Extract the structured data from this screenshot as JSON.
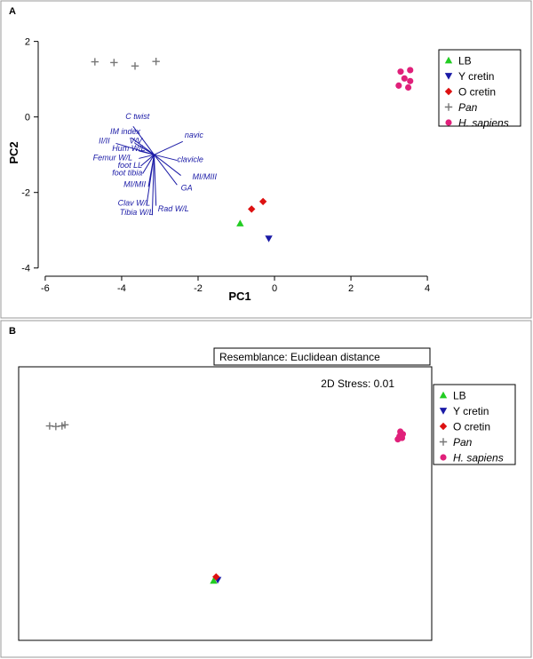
{
  "colors": {
    "LB": "#22cc22",
    "Y cretin": "#1a1aa6",
    "O cretin": "#dd1111",
    "Pan": "#777777",
    "H. sapiens": "#e0207a",
    "vector": "#1a1aa6"
  },
  "legend": [
    {
      "name": "LB",
      "marker": "triangle-up",
      "italic": false
    },
    {
      "name": "Y cretin",
      "marker": "triangle-down",
      "italic": false
    },
    {
      "name": "O cretin",
      "marker": "diamond",
      "italic": false
    },
    {
      "name": "Pan",
      "marker": "plus",
      "italic": true
    },
    {
      "name": "H. sapiens",
      "marker": "circle",
      "italic": true
    }
  ],
  "chart_data": [
    {
      "panel": "A",
      "type": "scatter",
      "xlabel": "PC1",
      "ylabel": "PC2",
      "xlim": [
        -6.3,
        4.3
      ],
      "ylim": [
        -4.1,
        2.25
      ],
      "xticks": [
        -6,
        -4,
        -2,
        0,
        2,
        4
      ],
      "yticks": [
        -4,
        -2,
        0,
        2
      ],
      "grid": false,
      "legend_position": "top-right",
      "series": [
        {
          "name": "LB",
          "x": [
            -0.9
          ],
          "y": [
            -2.82
          ]
        },
        {
          "name": "Y cretin",
          "x": [
            -0.15
          ],
          "y": [
            -3.22
          ]
        },
        {
          "name": "O cretin",
          "x": [
            -0.6,
            -0.3
          ],
          "y": [
            -2.44,
            -2.24
          ]
        },
        {
          "name": "Pan",
          "x": [
            -4.7,
            -4.2,
            -3.65,
            -3.1
          ],
          "y": [
            1.46,
            1.44,
            1.35,
            1.47
          ]
        },
        {
          "name": "H. sapiens",
          "x": [
            3.3,
            3.55,
            3.4,
            3.55,
            3.25,
            3.5
          ],
          "y": [
            1.2,
            1.24,
            1.02,
            0.95,
            0.83,
            0.78
          ]
        }
      ],
      "vector_origin": [
        -3.15,
        -1.0
      ],
      "vectors": [
        {
          "label": "C twist",
          "end": [
            -3.7,
            -0.25
          ],
          "label_at": [
            -3.9,
            -0.05
          ]
        },
        {
          "label": "IM index",
          "end": [
            -3.75,
            -0.55
          ],
          "label_at": [
            -4.3,
            -0.45
          ]
        },
        {
          "label": "II/II",
          "end": [
            -4.15,
            -0.7
          ],
          "label_at": [
            -4.6,
            -0.7
          ]
        },
        {
          "label": "V/V",
          "end": [
            -3.65,
            -0.7
          ],
          "label_at": [
            -3.8,
            -0.7
          ]
        },
        {
          "label": "Hum W/L",
          "end": [
            -3.55,
            -0.9
          ],
          "label_at": [
            -4.25,
            -0.9
          ]
        },
        {
          "label": "Femur W/L",
          "end": [
            -3.55,
            -1.1
          ],
          "label_at": [
            -4.75,
            -1.15
          ]
        },
        {
          "label": "foot LL",
          "end": [
            -3.5,
            -1.3
          ],
          "label_at": [
            -4.1,
            -1.35
          ]
        },
        {
          "label": "foot tibia",
          "end": [
            -3.45,
            -1.5
          ],
          "label_at": [
            -4.25,
            -1.55
          ]
        },
        {
          "label": "MI/MII",
          "end": [
            -3.3,
            -1.85
          ],
          "label_at": [
            -3.95,
            -1.85
          ]
        },
        {
          "label": "Clav W/L",
          "end": [
            -3.35,
            -2.35
          ],
          "label_at": [
            -4.1,
            -2.35
          ]
        },
        {
          "label": "Tibia W/L",
          "end": [
            -3.2,
            -2.6
          ],
          "label_at": [
            -4.05,
            -2.6
          ]
        },
        {
          "label": "Rad W/L",
          "end": [
            -3.1,
            -2.35
          ],
          "label_at": [
            -3.05,
            -2.5
          ]
        },
        {
          "label": "navic",
          "end": [
            -2.4,
            -0.65
          ],
          "label_at": [
            -2.35,
            -0.55
          ]
        },
        {
          "label": "clavicle",
          "end": [
            -2.55,
            -1.15
          ],
          "label_at": [
            -2.55,
            -1.2
          ]
        },
        {
          "label": "MI/MIII",
          "end": [
            -2.45,
            -1.55
          ],
          "label_at": [
            -2.15,
            -1.65
          ]
        },
        {
          "label": "GA",
          "end": [
            -2.55,
            -1.8
          ],
          "label_at": [
            -2.45,
            -1.95
          ]
        }
      ]
    },
    {
      "panel": "B",
      "type": "scatter",
      "title": "Resemblance: Euclidean distance",
      "annotation": "2D Stress: 0.01",
      "xlabel": "",
      "ylabel": "",
      "xlim": [
        0,
        1
      ],
      "ylim": [
        0,
        1
      ],
      "axes_visible": false,
      "grid": false,
      "legend_position": "right",
      "series": [
        {
          "name": "LB",
          "x": [
            0.472
          ],
          "y": [
            0.218
          ]
        },
        {
          "name": "Y cretin",
          "x": [
            0.482
          ],
          "y": [
            0.221
          ]
        },
        {
          "name": "O cretin",
          "x": [
            0.478
          ],
          "y": [
            0.232
          ]
        },
        {
          "name": "Pan",
          "x": [
            0.075,
            0.09,
            0.105,
            0.112
          ],
          "y": [
            0.784,
            0.782,
            0.784,
            0.788
          ]
        },
        {
          "name": "H. sapiens",
          "x": [
            0.924,
            0.93,
            0.922,
            0.928,
            0.918
          ],
          "y": [
            0.763,
            0.754,
            0.746,
            0.74,
            0.735
          ]
        }
      ]
    }
  ]
}
